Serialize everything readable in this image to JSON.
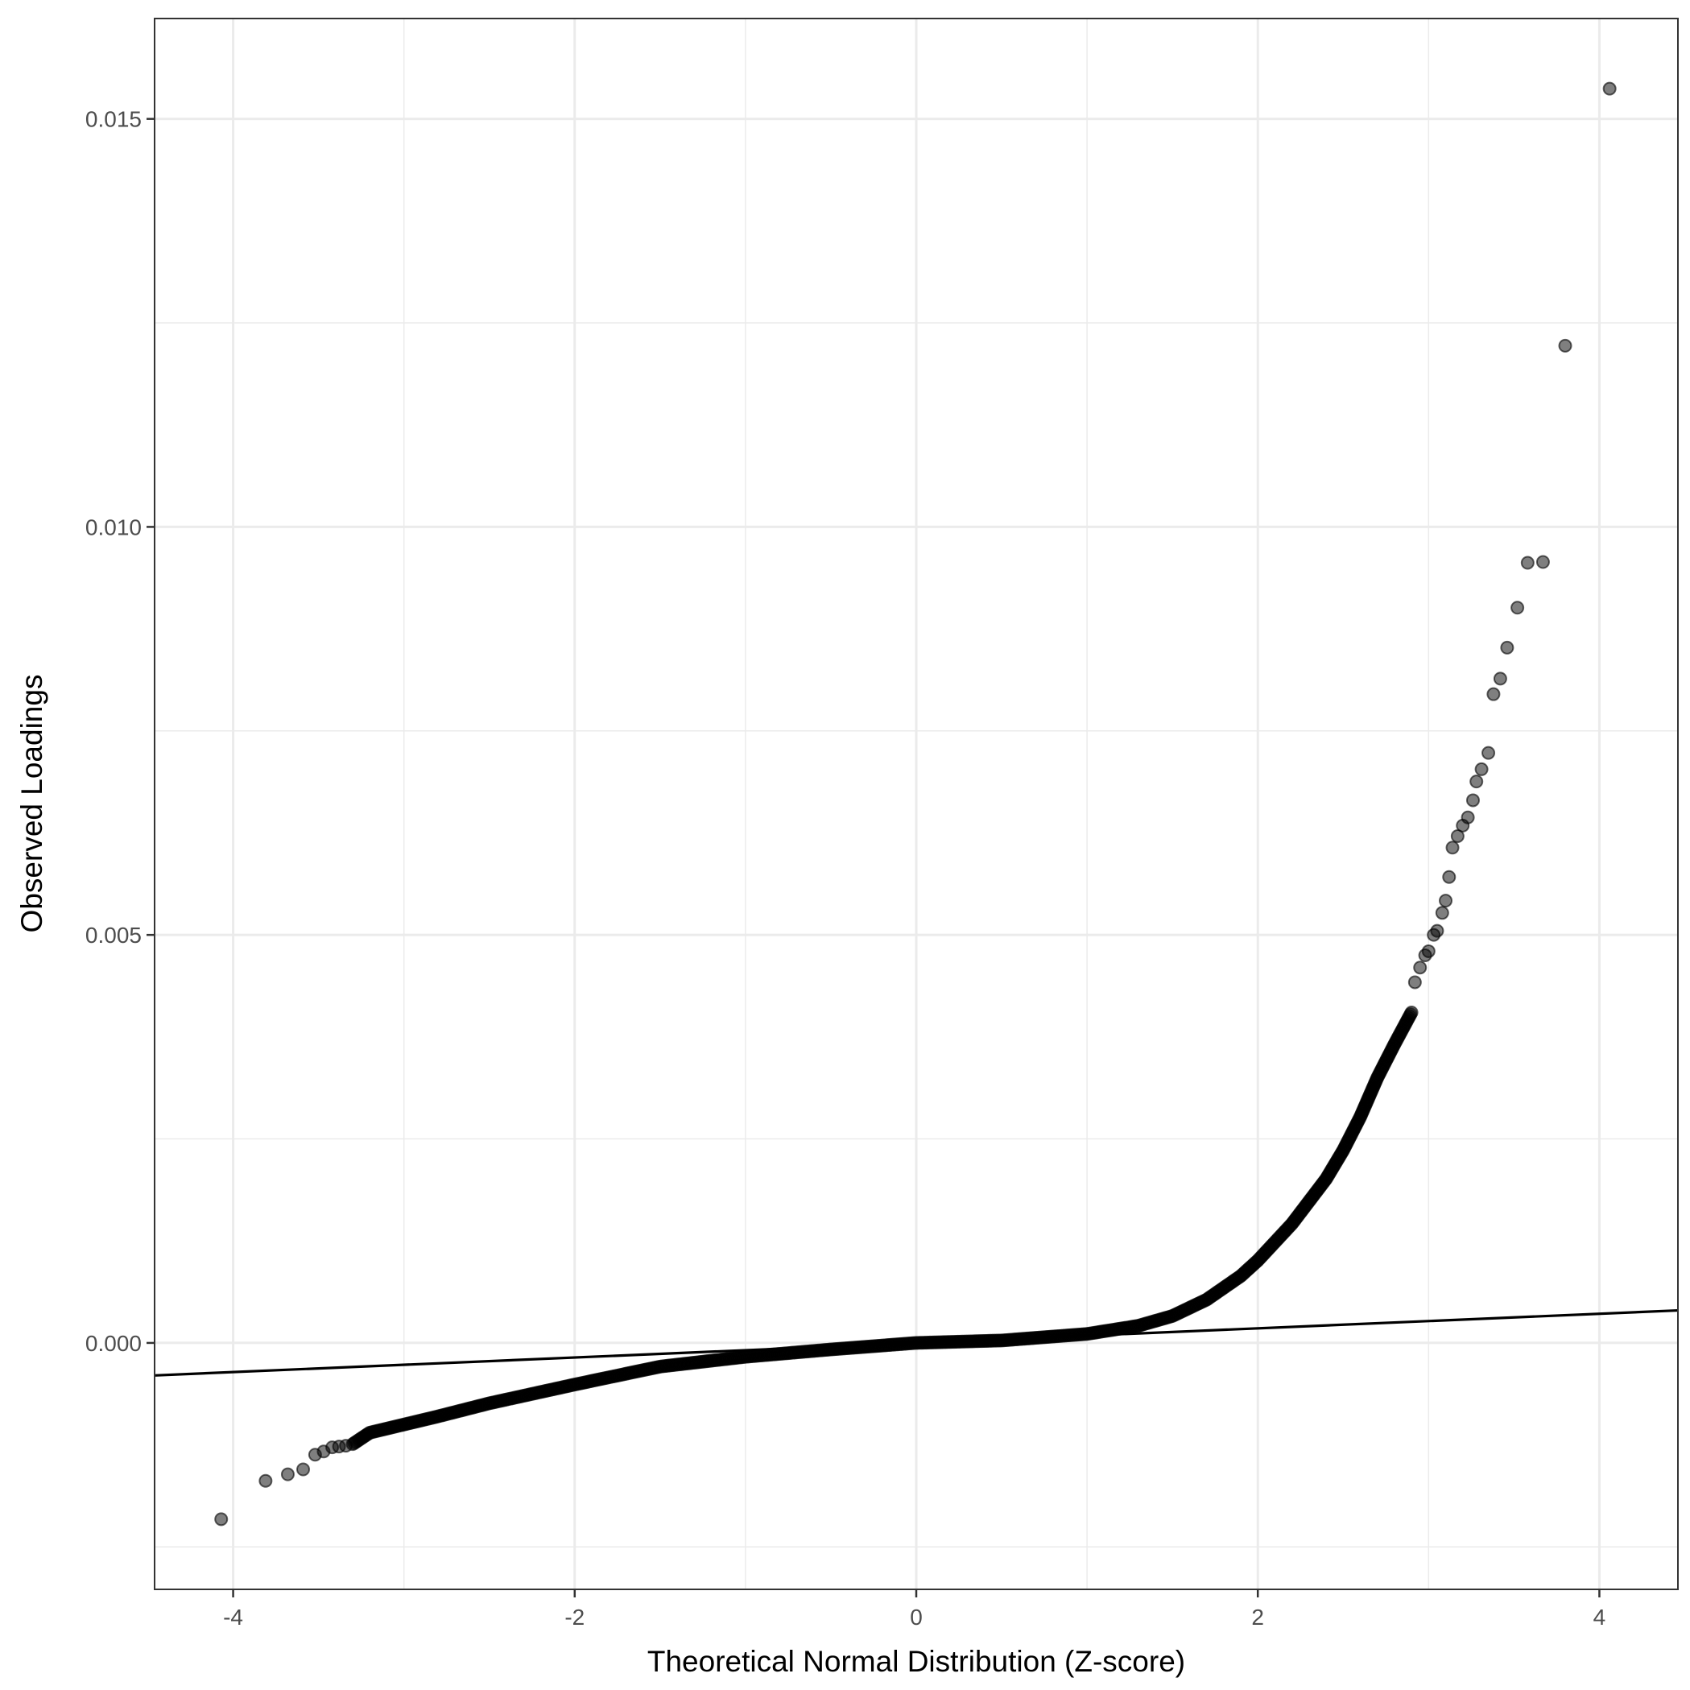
{
  "chart_data": {
    "type": "scatter",
    "title": "",
    "xlabel": "Theoretical Normal Distribution (Z-score)",
    "ylabel": "Observed Loadings",
    "xlim": [
      -4.46,
      4.46
    ],
    "ylim": [
      -0.00302,
      0.01623
    ],
    "x_ticks": [
      -4,
      -2,
      0,
      2,
      4
    ],
    "x_tick_labels": [
      "-4",
      "-2",
      "0",
      "2",
      "4"
    ],
    "y_ticks": [
      0,
      0.005,
      0.01,
      0.015
    ],
    "y_tick_labels": [
      "0.000",
      "0.005",
      "0.010",
      "0.015"
    ],
    "grid": true,
    "legend": "none",
    "point_color": "#000000",
    "point_alpha": 0.5,
    "reference_line": {
      "intercept": 0.0,
      "slope": 8.93e-05,
      "color": "#000000"
    },
    "points": [
      [
        -4.07,
        -0.00216
      ],
      [
        -3.81,
        -0.00169
      ],
      [
        -3.68,
        -0.00161
      ],
      [
        -3.59,
        -0.00155
      ],
      [
        -3.52,
        -0.00137
      ],
      [
        -3.47,
        -0.00133
      ],
      [
        -3.42,
        -0.00128
      ],
      [
        -3.38,
        -0.00127
      ],
      [
        -3.34,
        -0.00126
      ],
      [
        -3.3,
        -0.00124
      ],
      [
        -3.2,
        -0.0011
      ],
      [
        -3.0,
        -0.001
      ],
      [
        -2.8,
        -0.0009
      ],
      [
        -2.5,
        -0.00074
      ],
      [
        -2.0,
        -0.00051
      ],
      [
        -1.5,
        -0.00029
      ],
      [
        -1.0,
        -0.00017
      ],
      [
        -0.5,
        -8e-05
      ],
      [
        0.0,
        0.0
      ],
      [
        0.5,
        3e-05
      ],
      [
        1.0,
        0.00011
      ],
      [
        1.3,
        0.00021
      ],
      [
        1.5,
        0.00033
      ],
      [
        1.7,
        0.00053
      ],
      [
        1.9,
        0.00082
      ],
      [
        2.0,
        0.00101
      ],
      [
        2.2,
        0.00146
      ],
      [
        2.4,
        0.00201
      ],
      [
        2.5,
        0.00236
      ],
      [
        2.6,
        0.00277
      ],
      [
        2.7,
        0.00325
      ],
      [
        2.8,
        0.00366
      ],
      [
        2.9,
        0.00405
      ],
      [
        2.92,
        0.00442
      ],
      [
        2.95,
        0.0046
      ],
      [
        2.98,
        0.00475
      ],
      [
        3.0,
        0.0048
      ],
      [
        3.03,
        0.005
      ],
      [
        3.05,
        0.00505
      ],
      [
        3.08,
        0.00527
      ],
      [
        3.1,
        0.00542
      ],
      [
        3.12,
        0.00571
      ],
      [
        3.14,
        0.00607
      ],
      [
        3.17,
        0.00621
      ],
      [
        3.2,
        0.00634
      ],
      [
        3.23,
        0.00644
      ],
      [
        3.26,
        0.00665
      ],
      [
        3.28,
        0.00688
      ],
      [
        3.31,
        0.00703
      ],
      [
        3.35,
        0.00723
      ],
      [
        3.38,
        0.00795
      ],
      [
        3.42,
        0.00814
      ],
      [
        3.46,
        0.00852
      ],
      [
        3.52,
        0.00901
      ],
      [
        3.58,
        0.00956
      ],
      [
        3.67,
        0.00957
      ],
      [
        3.8,
        0.01222
      ],
      [
        4.06,
        0.01537
      ]
    ]
  }
}
